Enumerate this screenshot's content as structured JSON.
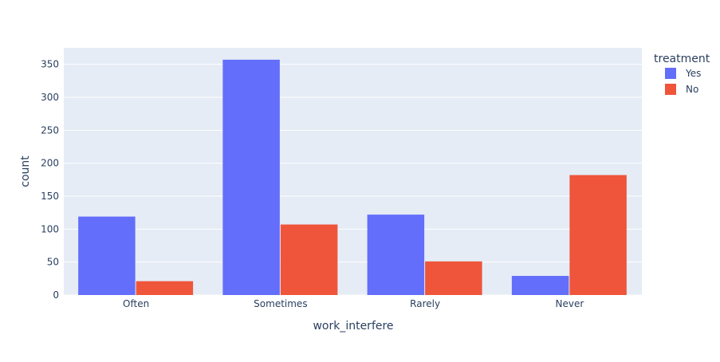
{
  "chart_data": {
    "type": "bar",
    "categories": [
      "Often",
      "Sometimes",
      "Rarely",
      "Never"
    ],
    "series": [
      {
        "name": "Yes",
        "values": [
          119,
          357,
          122,
          29
        ],
        "color": "#636efa"
      },
      {
        "name": "No",
        "values": [
          21,
          107,
          51,
          182
        ],
        "color": "#ef553b"
      }
    ],
    "xlabel": "work_interfere",
    "ylabel": "count",
    "ylim": [
      0,
      375
    ],
    "yticks": [
      0,
      50,
      100,
      150,
      200,
      250,
      300,
      350
    ],
    "grid": true,
    "legend": {
      "title": "treatment",
      "placement": "top-right"
    },
    "plot_background": "#e5ecf6"
  }
}
